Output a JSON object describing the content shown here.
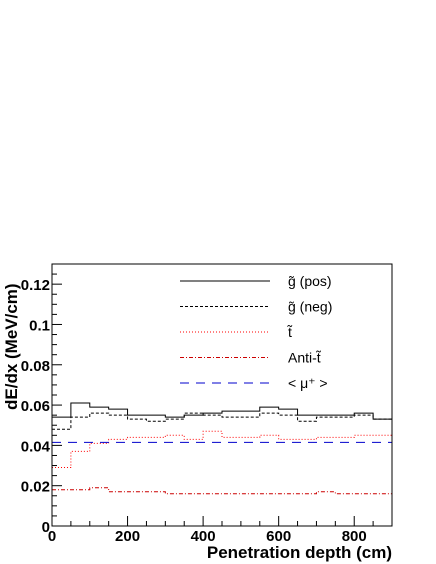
{
  "chart_data": {
    "type": "line",
    "title": "",
    "xlabel": "Penetration depth (cm)",
    "ylabel": "dE/dx (MeV/cm)",
    "xlim": [
      0,
      900
    ],
    "ylim": [
      0,
      0.13
    ],
    "xticks": [
      0,
      200,
      400,
      600,
      800
    ],
    "xtick_labels": [
      "0",
      "200",
      "400",
      "600",
      "800"
    ],
    "yticks": [
      0,
      0.02,
      0.04,
      0.06,
      0.08,
      0.1,
      0.12
    ],
    "ytick_labels": [
      "0",
      "0.02",
      "0.04",
      "0.06",
      "0.08",
      "0.1",
      "0.12"
    ],
    "grid": false,
    "legend_position": "top-right",
    "bin_edges": [
      0,
      50,
      100,
      150,
      200,
      250,
      300,
      350,
      400,
      450,
      500,
      550,
      600,
      650,
      700,
      750,
      800,
      850,
      900
    ],
    "series": [
      {
        "name": "g̃ (pos)",
        "style": "solid",
        "color": "#000000",
        "values": [
          0.054,
          0.061,
          0.059,
          0.058,
          0.055,
          0.055,
          0.054,
          0.055,
          0.056,
          0.057,
          0.057,
          0.059,
          0.058,
          0.055,
          0.055,
          0.055,
          0.056,
          0.053
        ]
      },
      {
        "name": "g̃ (neg)",
        "style": "dashed",
        "color": "#000000",
        "values": [
          0.048,
          0.054,
          0.056,
          0.055,
          0.053,
          0.052,
          0.053,
          0.056,
          0.055,
          0.054,
          0.054,
          0.056,
          0.055,
          0.052,
          0.054,
          0.054,
          0.055,
          0.053
        ]
      },
      {
        "name": "t̃",
        "style": "dotted",
        "color": "#ff0000",
        "values": [
          0.029,
          0.037,
          0.041,
          0.043,
          0.044,
          0.044,
          0.045,
          0.043,
          0.047,
          0.044,
          0.044,
          0.045,
          0.043,
          0.043,
          0.044,
          0.044,
          0.045,
          0.045
        ]
      },
      {
        "name": "Anti-t̃",
        "style": "dash-dot",
        "color": "#cc0000",
        "values": [
          0.018,
          0.018,
          0.019,
          0.017,
          0.017,
          0.017,
          0.016,
          0.016,
          0.016,
          0.016,
          0.016,
          0.016,
          0.016,
          0.016,
          0.017,
          0.016,
          0.016,
          0.016
        ]
      },
      {
        "name": "< μ⁺ >",
        "style": "long-dash",
        "color": "#0000cc",
        "values": [
          0.0415,
          0.0415,
          0.0415,
          0.0415,
          0.0415,
          0.0415,
          0.0415,
          0.0415,
          0.0415,
          0.0415,
          0.0415,
          0.0415,
          0.0415,
          0.0415,
          0.0415,
          0.0415,
          0.0415,
          0.0415
        ]
      }
    ]
  }
}
